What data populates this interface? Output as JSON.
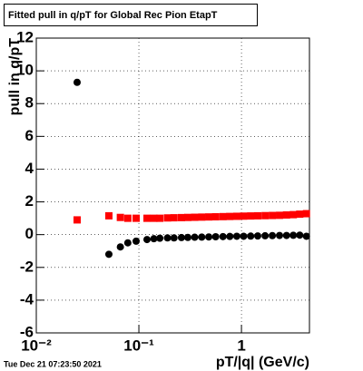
{
  "chart_data": {
    "type": "scatter",
    "title": "Fitted pull in q/pT for Global Rec Pion EtapT",
    "x_label": "pT/|q| (GeV/c)",
    "y_label": "pull in q/pT",
    "timestamp": "Tue Dec 21 07:23:50 2021",
    "x": [
      0.025,
      0.051,
      0.066,
      0.078,
      0.094,
      0.12,
      0.14,
      0.16,
      0.19,
      0.22,
      0.26,
      0.3,
      0.35,
      0.41,
      0.48,
      0.56,
      0.66,
      0.77,
      0.9,
      1.05,
      1.23,
      1.44,
      1.7,
      2.0,
      2.35,
      2.75,
      3.2,
      3.7,
      4.3
    ],
    "series": [
      {
        "color": "#000000",
        "marker": "circle",
        "values": [
          9.3,
          -1.2,
          -0.75,
          -0.5,
          -0.4,
          -0.3,
          -0.25,
          -0.22,
          -0.2,
          -0.2,
          -0.18,
          -0.17,
          -0.16,
          -0.15,
          -0.14,
          -0.13,
          -0.12,
          -0.11,
          -0.1,
          -0.1,
          -0.09,
          -0.08,
          -0.07,
          -0.06,
          -0.05,
          -0.05,
          -0.04,
          -0.03,
          -0.1
        ]
      },
      {
        "color": "#ff0000",
        "marker": "square",
        "values": [
          0.9,
          1.15,
          1.05,
          1.0,
          1.0,
          1.0,
          1.0,
          1.0,
          1.02,
          1.03,
          1.04,
          1.05,
          1.06,
          1.07,
          1.08,
          1.09,
          1.1,
          1.11,
          1.12,
          1.13,
          1.14,
          1.15,
          1.16,
          1.17,
          1.18,
          1.2,
          1.22,
          1.25,
          1.28
        ]
      }
    ],
    "log_x": true,
    "xlim": [
      0.01,
      4.6
    ],
    "xticks": [
      {
        "value": 0.01,
        "label": "10⁻²"
      },
      {
        "value": 0.1,
        "label": "10⁻¹"
      },
      1
    ],
    "ylim": [
      -6,
      12
    ],
    "yticks": [
      -6,
      -4,
      -2,
      0,
      2,
      4,
      6,
      8,
      10,
      12
    ],
    "grid": true
  }
}
